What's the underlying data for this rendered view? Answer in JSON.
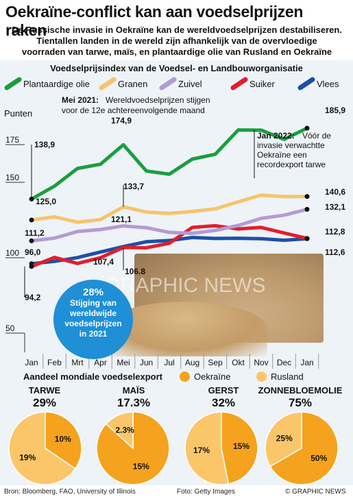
{
  "header": {
    "title": "Oekraïne-conflict kan aan voedselprijzen raken",
    "subtitle_lines": [
      "De Russische invasie in Oekraïne kan de wereldvoedselprijzen destabiliseren.",
      "Tientallen landen in de wereld zijn afhankelijk van de overvloedige",
      "voorraden van tarwe, maïs, en plantaardige olie van Rusland en Oekraïne"
    ]
  },
  "chart_data": [
    {
      "type": "line",
      "title": "Voedselprijsindex van de Voedsel- en Landbouworganisatie",
      "ylabel": "Punten",
      "ylim": [
        50,
        190
      ],
      "yticks": [
        50,
        100,
        150,
        175
      ],
      "categories": [
        "Jan",
        "Feb",
        "Mrt",
        "Apr",
        "Mei",
        "Jun",
        "Jul",
        "Aug",
        "Sep",
        "Okt",
        "Nov",
        "Dec",
        "Jan"
      ],
      "series": [
        {
          "name": "Plantaardige olie",
          "color": "#1a9e3f",
          "values": [
            138.9,
            147.5,
            159.2,
            162.0,
            174.9,
            157.5,
            155.4,
            165.4,
            168.6,
            184.7,
            184.6,
            178.5,
            185.9
          ]
        },
        {
          "name": "Granen",
          "color": "#f5c46a",
          "values": [
            125.0,
            127.1,
            123.6,
            125.3,
            133.7,
            130.3,
            129.4,
            130.7,
            132.4,
            137.1,
            141.5,
            140.5,
            140.6
          ]
        },
        {
          "name": "Zuivel",
          "color": "#b39ad6",
          "values": [
            111.2,
            113.0,
            117.4,
            118.7,
            121.1,
            119.9,
            116.8,
            116.2,
            118.1,
            121.4,
            126.1,
            128.2,
            132.1
          ]
        },
        {
          "name": "Suiker",
          "color": "#e0202a",
          "values": [
            94.2,
            100.2,
            96.2,
            100.0,
            106.8,
            106.6,
            109.6,
            120.1,
            121.2,
            119.1,
            120.1,
            116.4,
            112.8
          ]
        },
        {
          "name": "Vlees",
          "color": "#1d4fa8",
          "values": [
            96.0,
            97.6,
            100.1,
            103.8,
            107.4,
            110.6,
            111.4,
            113.4,
            112.8,
            112.9,
            112.6,
            111.6,
            112.6
          ]
        }
      ],
      "labels": {
        "olie_start": "138,9",
        "olie_peak": "174,9",
        "olie_end": "185,9",
        "granen_start": "125,0",
        "granen_peak": "133,7",
        "granen_end": "140,6",
        "zuivel_start": "111,2",
        "zuivel_mei": "121,1",
        "zuivel_end": "132,1",
        "vlees_start": "96,0",
        "vlees_mei": "107,4",
        "vlees_end": "112,6",
        "suiker_start": "94,2",
        "suiker_mei": "106.8",
        "suiker_end": "112,8"
      },
      "annotations": {
        "mei_bold": "Mei 2021:",
        "mei_text_1": "Wereldvoedselprijzen stijgen",
        "mei_text_2": "voor de 12e achtereenvolgende maand",
        "jan_bold": "Jan 2022:",
        "jan_text_1": "Vóór de",
        "jan_text_2": "invasie verwachtte",
        "jan_text_3": "Oekraïne een",
        "jan_text_4": "recordexport tarwe"
      },
      "bubble": {
        "pct": "28%",
        "line1": "Stijging van",
        "line2": "wereldwijde",
        "line3": "voedselprijzen",
        "line4": "in 2021"
      }
    },
    {
      "type": "pie",
      "title": "Aandeel mondiale voedselexport",
      "legend": [
        {
          "name": "Oekraïne",
          "color": "#f5a21e"
        },
        {
          "name": "Rusland",
          "color": "#fbc66a"
        }
      ],
      "pies": [
        {
          "name": "TARWE",
          "total": "29%",
          "slices": [
            {
              "label": "10%",
              "value": 10,
              "color": "#f5a21e"
            },
            {
              "label": "19%",
              "value": 19,
              "color": "#fbc66a"
            }
          ]
        },
        {
          "name": "MAÏS",
          "total": "17.3%",
          "slices": [
            {
              "label": "15%",
              "value": 15,
              "color": "#f5a21e"
            },
            {
              "label": "2.3%",
              "value": 2.3,
              "color": "#fbc66a"
            }
          ]
        },
        {
          "name": "GERST",
          "total": "32%",
          "slices": [
            {
              "label": "15%",
              "value": 15,
              "color": "#f5a21e"
            },
            {
              "label": "17%",
              "value": 17,
              "color": "#fbc66a"
            }
          ]
        },
        {
          "name": "ZONNEBLOEMOLIE",
          "total": "75%",
          "slices": [
            {
              "label": "50%",
              "value": 50,
              "color": "#f5a21e"
            },
            {
              "label": "25%",
              "value": 25,
              "color": "#fbc66a"
            }
          ]
        }
      ]
    }
  ],
  "footer": {
    "source": "Bron: Bloomberg, FAO, University of Illinois",
    "photo": "Foto: Getty Images",
    "credit": "© GRAPHIC NEWS"
  },
  "watermark": "GRAPHIC NEWS"
}
